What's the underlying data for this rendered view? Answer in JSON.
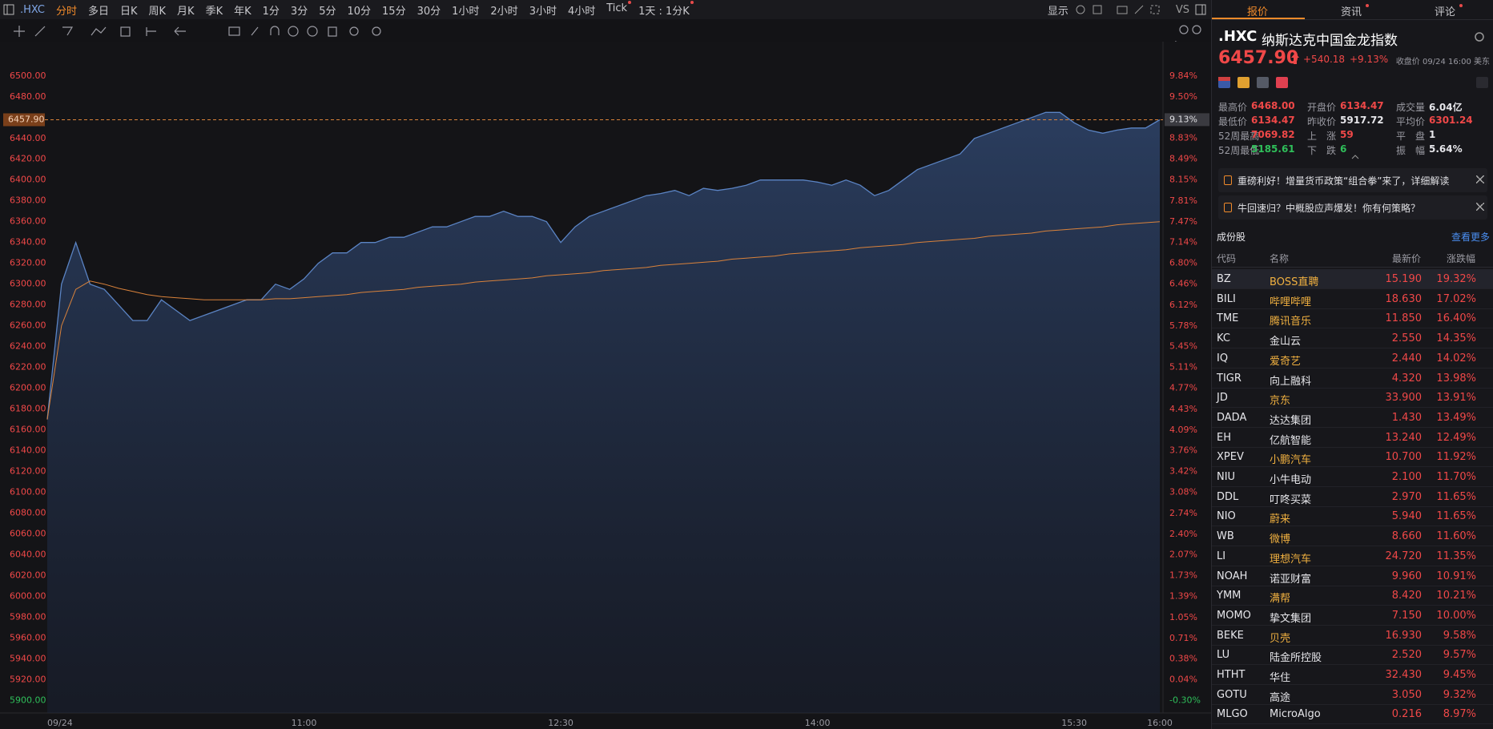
{
  "toolbar": {
    "symbol": ".HXC",
    "active_period": 0,
    "periods": [
      "分时",
      "多日",
      "日K",
      "周K",
      "月K",
      "季K",
      "年K",
      "1分",
      "3分",
      "5分",
      "10分",
      "15分",
      "30分",
      "1小时",
      "2小时",
      "3小时",
      "4小时",
      "Tick",
      "1天 : 1分K"
    ],
    "display": "显示",
    "compare": "VS"
  },
  "chart_data": {
    "type": "area",
    "grid": false,
    "prev_close": 5917.72,
    "x": [
      "09:30",
      "09:35",
      "09:40",
      "09:45",
      "09:50",
      "09:55",
      "10:00",
      "10:05",
      "10:10",
      "10:15",
      "10:20",
      "10:25",
      "10:30",
      "10:35",
      "10:40",
      "10:45",
      "10:50",
      "10:55",
      "11:00",
      "11:05",
      "11:10",
      "11:15",
      "11:20",
      "11:25",
      "11:30",
      "11:35",
      "11:40",
      "11:45",
      "11:50",
      "11:55",
      "12:00",
      "12:05",
      "12:10",
      "12:15",
      "12:20",
      "12:25",
      "12:30",
      "12:35",
      "12:40",
      "12:45",
      "12:50",
      "12:55",
      "13:00",
      "13:05",
      "13:10",
      "13:15",
      "13:20",
      "13:25",
      "13:30",
      "13:35",
      "13:40",
      "13:45",
      "13:50",
      "13:55",
      "14:00",
      "14:05",
      "14:10",
      "14:15",
      "14:20",
      "14:25",
      "14:30",
      "14:35",
      "14:40",
      "14:45",
      "14:50",
      "14:55",
      "15:00",
      "15:05",
      "15:10",
      "15:15",
      "15:20",
      "15:25",
      "15:30",
      "15:35",
      "15:40",
      "15:45",
      "15:50",
      "15:55",
      "16:00"
    ],
    "series": [
      {
        "color": "#5b84c4",
        "values": [
          6170,
          6300,
          6340,
          6300,
          6295,
          6280,
          6265,
          6265,
          6285,
          6275,
          6265,
          6270,
          6275,
          6280,
          6285,
          6285,
          6300,
          6295,
          6305,
          6320,
          6330,
          6330,
          6340,
          6340,
          6345,
          6345,
          6350,
          6355,
          6355,
          6360,
          6365,
          6365,
          6370,
          6365,
          6365,
          6360,
          6340,
          6355,
          6365,
          6370,
          6375,
          6380,
          6385,
          6387,
          6390,
          6385,
          6392,
          6390,
          6392,
          6395,
          6400,
          6400,
          6400,
          6400,
          6398,
          6395,
          6400,
          6395,
          6385,
          6390,
          6400,
          6410,
          6415,
          6420,
          6425,
          6440,
          6445,
          6450,
          6455,
          6460,
          6465,
          6465,
          6455,
          6448,
          6445,
          6448,
          6450,
          6450,
          6457.9
        ]
      },
      {
        "color": "#d9823b",
        "values": [
          6170,
          6260,
          6295,
          6303,
          6300,
          6296,
          6293,
          6290,
          6288,
          6287,
          6286,
          6285,
          6285,
          6285,
          6285,
          6285,
          6286,
          6286,
          6287,
          6288,
          6289,
          6290,
          6292,
          6293,
          6294,
          6295,
          6297,
          6298,
          6299,
          6300,
          6302,
          6303,
          6304,
          6305,
          6306,
          6308,
          6309,
          6310,
          6311,
          6313,
          6314,
          6315,
          6316,
          6318,
          6319,
          6320,
          6321,
          6322,
          6324,
          6325,
          6326,
          6327,
          6329,
          6330,
          6331,
          6332,
          6333,
          6335,
          6336,
          6337,
          6338,
          6340,
          6341,
          6342,
          6343,
          6344,
          6346,
          6347,
          6348,
          6349,
          6351,
          6352,
          6353,
          6354,
          6355,
          6357,
          6358,
          6359,
          6360
        ]
      }
    ],
    "ylim": [
      5888,
      6516
    ],
    "yticks": [
      {
        "value": 6500,
        "label": "6500.00"
      },
      {
        "value": 6480,
        "label": "6480.00"
      },
      {
        "value": 6440,
        "label": "6440.00"
      },
      {
        "value": 6420,
        "label": "6420.00"
      },
      {
        "value": 6400,
        "label": "6400.00"
      },
      {
        "value": 6380,
        "label": "6380.00"
      },
      {
        "value": 6360,
        "label": "6360.00"
      },
      {
        "value": 6340,
        "label": "6340.00"
      },
      {
        "value": 6320,
        "label": "6320.00"
      },
      {
        "value": 6300,
        "label": "6300.00"
      },
      {
        "value": 6280,
        "label": "6280.00"
      },
      {
        "value": 6260,
        "label": "6260.00"
      },
      {
        "value": 6240,
        "label": "6240.00"
      },
      {
        "value": 6220,
        "label": "6220.00"
      },
      {
        "value": 6200,
        "label": "6200.00"
      },
      {
        "value": 6180,
        "label": "6180.00"
      },
      {
        "value": 6160,
        "label": "6160.00"
      },
      {
        "value": 6140,
        "label": "6140.00"
      },
      {
        "value": 6120,
        "label": "6120.00"
      },
      {
        "value": 6100,
        "label": "6100.00"
      },
      {
        "value": 6080,
        "label": "6080.00"
      },
      {
        "value": 6060,
        "label": "6060.00"
      },
      {
        "value": 6040,
        "label": "6040.00"
      },
      {
        "value": 6020,
        "label": "6020.00"
      },
      {
        "value": 6000,
        "label": "6000.00"
      },
      {
        "value": 5980,
        "label": "5980.00"
      },
      {
        "value": 5960,
        "label": "5960.00"
      },
      {
        "value": 5940,
        "label": "5940.00"
      },
      {
        "value": 5920,
        "label": "5920.00"
      },
      {
        "value": 5900,
        "label": "5900.00"
      }
    ],
    "y2lim": [
      -0.5,
      10.11
    ],
    "y2ticks": [
      {
        "value": 9.84,
        "label": "9.84%"
      },
      {
        "value": 9.5,
        "label": "9.50%"
      },
      {
        "value": 8.83,
        "label": "8.83%"
      },
      {
        "value": 8.49,
        "label": "8.49%"
      },
      {
        "value": 8.15,
        "label": "8.15%"
      },
      {
        "value": 7.81,
        "label": "7.81%"
      },
      {
        "value": 7.47,
        "label": "7.47%"
      },
      {
        "value": 7.14,
        "label": "7.14%"
      },
      {
        "value": 6.8,
        "label": "6.80%"
      },
      {
        "value": 6.46,
        "label": "6.46%"
      },
      {
        "value": 6.12,
        "label": "6.12%"
      },
      {
        "value": 5.78,
        "label": "5.78%"
      },
      {
        "value": 5.45,
        "label": "5.45%"
      },
      {
        "value": 5.11,
        "label": "5.11%"
      },
      {
        "value": 4.77,
        "label": "4.77%"
      },
      {
        "value": 4.43,
        "label": "4.43%"
      },
      {
        "value": 4.09,
        "label": "4.09%"
      },
      {
        "value": 3.76,
        "label": "3.76%"
      },
      {
        "value": 3.42,
        "label": "3.42%"
      },
      {
        "value": 3.08,
        "label": "3.08%"
      },
      {
        "value": 2.74,
        "label": "2.74%"
      },
      {
        "value": 2.4,
        "label": "2.40%"
      },
      {
        "value": 2.07,
        "label": "2.07%"
      },
      {
        "value": 1.73,
        "label": "1.73%"
      },
      {
        "value": 1.39,
        "label": "1.39%"
      },
      {
        "value": 1.05,
        "label": "1.05%"
      },
      {
        "value": 0.71,
        "label": "0.71%"
      },
      {
        "value": 0.38,
        "label": "0.38%"
      },
      {
        "value": 0.04,
        "label": "0.04%"
      },
      {
        "value": -0.3,
        "label": "-0.30%"
      }
    ],
    "xticks": [
      {
        "value": "09:30",
        "label": "09/24"
      },
      {
        "value": "11:00",
        "label": "11:00"
      },
      {
        "value": "12:30",
        "label": "12:30"
      },
      {
        "value": "14:00",
        "label": "14:00"
      },
      {
        "value": "15:30",
        "label": "15:30"
      },
      {
        "value": "16:00",
        "label": "16:00"
      }
    ],
    "last_price": {
      "value": 6457.9,
      "label": "6457.90"
    },
    "last_pct": {
      "value": 9.13,
      "label": "9.13%"
    }
  },
  "panel": {
    "tabs": [
      "报价",
      "资讯",
      "评论"
    ],
    "symbol": ".HXC",
    "name": "纳斯达克中国金龙指数",
    "price": "6457.90",
    "change": "+540.18",
    "change_pct": "+9.13%",
    "status": "收盘价 09/24 16:00 美东",
    "stats": [
      [
        {
          "label": "最高价",
          "value": "6468.00",
          "color": "red"
        },
        {
          "label": "开盘价",
          "value": "6134.47",
          "color": "red"
        },
        {
          "label": "成交量",
          "value": "6.04亿",
          "color": "white"
        }
      ],
      [
        {
          "label": "最低价",
          "value": "6134.47",
          "color": "red"
        },
        {
          "label": "昨收价",
          "value": "5917.72",
          "color": "white"
        },
        {
          "label": "平均价",
          "value": "6301.24",
          "color": "red"
        }
      ],
      [
        {
          "label": "52周最高",
          "value": "7069.82",
          "color": "red"
        },
        {
          "label": "上　涨",
          "value": "59",
          "color": "red"
        },
        {
          "label": "平　盘",
          "value": "1",
          "color": "white"
        }
      ],
      [
        {
          "label": "52周最低",
          "value": "5185.61",
          "color": "green"
        },
        {
          "label": "下　跌",
          "value": "6",
          "color": "green"
        },
        {
          "label": "振　幅",
          "value": "5.64%",
          "color": "white"
        }
      ]
    ],
    "news": [
      "重磅利好！增量货币政策“组合拳”来了，详细解读",
      "牛回速归？中概股应声爆发！你有何策略？"
    ],
    "constituents": {
      "title": "成份股",
      "more": "查看更多",
      "columns": [
        "代码",
        "名称",
        "最新价",
        "涨跌幅"
      ],
      "rows": [
        {
          "code": "BZ",
          "name": "BOSS直聘",
          "price": "15.190",
          "change": "19.32%",
          "watch": true
        },
        {
          "code": "BILI",
          "name": "哔哩哔哩",
          "price": "18.630",
          "change": "17.02%",
          "watch": true
        },
        {
          "code": "TME",
          "name": "腾讯音乐",
          "price": "11.850",
          "change": "16.40%",
          "watch": true
        },
        {
          "code": "KC",
          "name": "金山云",
          "price": "2.550",
          "change": "14.35%",
          "watch": false
        },
        {
          "code": "IQ",
          "name": "爱奇艺",
          "price": "2.440",
          "change": "14.02%",
          "watch": true
        },
        {
          "code": "TIGR",
          "name": "向上融科",
          "price": "4.320",
          "change": "13.98%",
          "watch": false
        },
        {
          "code": "JD",
          "name": "京东",
          "price": "33.900",
          "change": "13.91%",
          "watch": true
        },
        {
          "code": "DADA",
          "name": "达达集团",
          "price": "1.430",
          "change": "13.49%",
          "watch": false
        },
        {
          "code": "EH",
          "name": "亿航智能",
          "price": "13.240",
          "change": "12.49%",
          "watch": false
        },
        {
          "code": "XPEV",
          "name": "小鹏汽车",
          "price": "10.700",
          "change": "11.92%",
          "watch": true
        },
        {
          "code": "NIU",
          "name": "小牛电动",
          "price": "2.100",
          "change": "11.70%",
          "watch": false
        },
        {
          "code": "DDL",
          "name": "叮咚买菜",
          "price": "2.970",
          "change": "11.65%",
          "watch": false
        },
        {
          "code": "NIO",
          "name": "蔚来",
          "price": "5.940",
          "change": "11.65%",
          "watch": true
        },
        {
          "code": "WB",
          "name": "微博",
          "price": "8.660",
          "change": "11.60%",
          "watch": true
        },
        {
          "code": "LI",
          "name": "理想汽车",
          "price": "24.720",
          "change": "11.35%",
          "watch": true
        },
        {
          "code": "NOAH",
          "name": "诺亚财富",
          "price": "9.960",
          "change": "10.91%",
          "watch": false
        },
        {
          "code": "YMM",
          "name": "满帮",
          "price": "8.420",
          "change": "10.21%",
          "watch": true
        },
        {
          "code": "MOMO",
          "name": "挚文集团",
          "price": "7.150",
          "change": "10.00%",
          "watch": false
        },
        {
          "code": "BEKE",
          "name": "贝壳",
          "price": "16.930",
          "change": "9.58%",
          "watch": true
        },
        {
          "code": "LU",
          "name": "陆金所控股",
          "price": "2.520",
          "change": "9.57%",
          "watch": false
        },
        {
          "code": "HTHT",
          "name": "华住",
          "price": "32.430",
          "change": "9.45%",
          "watch": false
        },
        {
          "code": "GOTU",
          "name": "高途",
          "price": "3.050",
          "change": "9.32%",
          "watch": false
        },
        {
          "code": "MLGO",
          "name": "MicroAlgo",
          "price": "0.216",
          "change": "8.97%",
          "watch": false
        }
      ]
    }
  }
}
